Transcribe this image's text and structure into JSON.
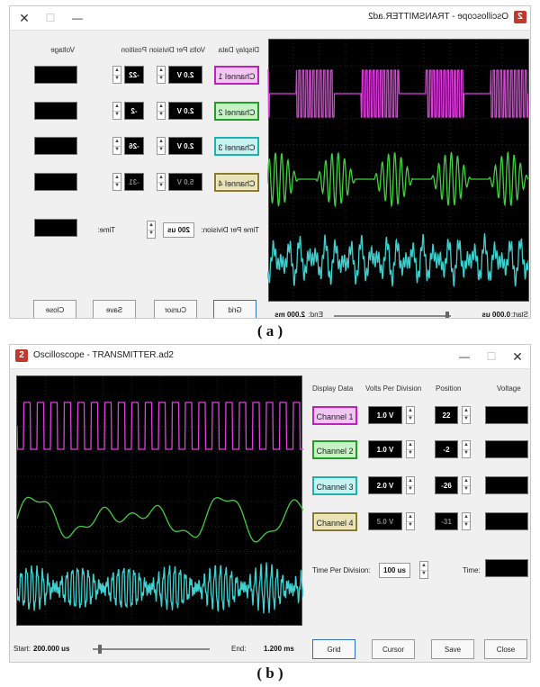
{
  "panels": [
    {
      "caption": "( a )",
      "window_title": "Oscilloscope - TRANSMITTER.ad2",
      "headers": {
        "display_data": "Display Data",
        "volts_per_division": "Volts Per Division",
        "position": "Position",
        "voltage": "Voltage"
      },
      "channels": [
        {
          "label": "Channel 1",
          "volts": "2.0 V",
          "position": "-22",
          "enabled": true
        },
        {
          "label": "Channel 2",
          "volts": "2.0 V",
          "position": "-2",
          "enabled": true
        },
        {
          "label": "Channel 3",
          "volts": "2.0 V",
          "position": "-26",
          "enabled": true
        },
        {
          "label": "Channel 4",
          "volts": "5.0 V",
          "position": "-31",
          "enabled": false
        }
      ],
      "time_per_division_label": "Time Per Division:",
      "time_per_division": "200 us",
      "time_label": "Time:",
      "buttons": {
        "grid": "Grid",
        "cursor": "Cursor",
        "save": "Save",
        "close": "Close"
      },
      "start_label": "Start:",
      "start_value": "0.000 us",
      "end_label": "End:",
      "end_value": "2.000 ms"
    },
    {
      "caption": "( b )",
      "window_title": "Oscilloscope - TRANSMITTER.ad2",
      "headers": {
        "display_data": "Display Data",
        "volts_per_division": "Volts Per Division",
        "position": "Position",
        "voltage": "Voltage"
      },
      "channels": [
        {
          "label": "Channel 1",
          "volts": "1.0 V",
          "position": "22",
          "enabled": true
        },
        {
          "label": "Channel 2",
          "volts": "1.0 V",
          "position": "-2",
          "enabled": true
        },
        {
          "label": "Channel 3",
          "volts": "2.0 V",
          "position": "-26",
          "enabled": true
        },
        {
          "label": "Channel 4",
          "volts": "5.0 V",
          "position": "-31",
          "enabled": false
        }
      ],
      "time_per_division_label": "Time Per Division:",
      "time_per_division": "100 us",
      "time_label": "Time:",
      "buttons": {
        "grid": "Grid",
        "cursor": "Cursor",
        "save": "Save",
        "close": "Close"
      },
      "start_label": "Start:",
      "start_value": "200.000 us",
      "end_label": "End:",
      "end_value": "1.200 ms"
    }
  ],
  "colors": {
    "channel1": "#e040e0",
    "channel2": "#40d040",
    "channel3": "#40d0d0",
    "grid": "#3a3a3a",
    "background": "#000000"
  },
  "icons": {
    "app": "oscilloscope-app-icon",
    "close": "close-x-icon",
    "maximize": "maximize-icon",
    "minimize": "minimize-icon"
  }
}
